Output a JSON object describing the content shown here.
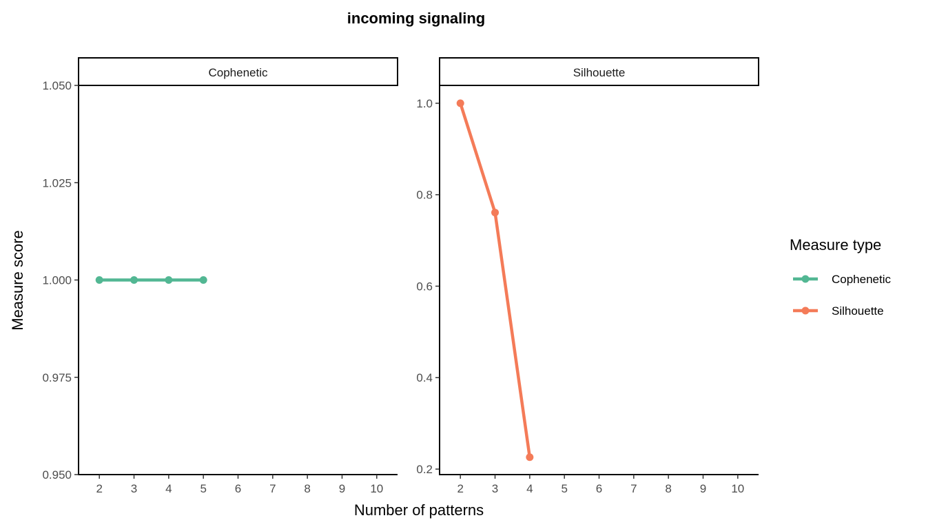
{
  "chart_data": {
    "type": "line",
    "title": "incoming signaling",
    "xlabel": "Number of patterns",
    "ylabel": "Measure score",
    "x_ticks": [
      2,
      3,
      4,
      5,
      6,
      7,
      8,
      9,
      10
    ],
    "grid": false,
    "legend": {
      "title": "Measure type",
      "placement": "right",
      "entries": [
        {
          "name": "Cophenetic",
          "color": "#52b793"
        },
        {
          "name": "Silhouette",
          "color": "#f47b58"
        }
      ]
    },
    "panels": [
      {
        "strip": "Cophenetic",
        "color": "#52b793",
        "xlim": [
          1.4,
          10.6
        ],
        "ylim": [
          0.95,
          1.05
        ],
        "y_ticks": [
          0.95,
          0.975,
          1.0,
          1.025,
          1.05
        ],
        "y_tick_labels": [
          "0.950",
          "0.975",
          "1.000",
          "1.025",
          "1.050"
        ],
        "series": [
          {
            "name": "Cophenetic",
            "x": [
              2,
              3,
              4,
              5
            ],
            "y": [
              1.0,
              1.0,
              1.0,
              1.0
            ]
          }
        ]
      },
      {
        "strip": "Silhouette",
        "color": "#f47b58",
        "xlim": [
          1.4,
          10.6
        ],
        "ylim": [
          0.188,
          1.039
        ],
        "y_ticks": [
          0.2,
          0.4,
          0.6,
          0.8,
          1.0
        ],
        "y_tick_labels": [
          "0.2",
          "0.4",
          "0.6",
          "0.8",
          "1.0"
        ],
        "series": [
          {
            "name": "Silhouette",
            "x": [
              2,
              3,
              4
            ],
            "y": [
              1.0,
              0.761,
              0.226
            ]
          }
        ]
      }
    ]
  }
}
